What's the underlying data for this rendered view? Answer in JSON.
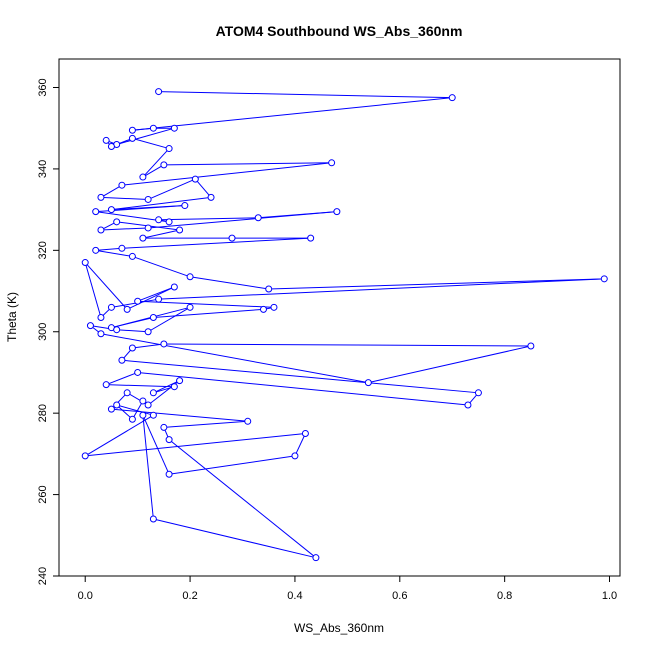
{
  "chart_data": {
    "type": "line",
    "title": "ATOM4 Southbound WS_Abs_360nm",
    "xlabel": "WS_Abs_360nm",
    "ylabel": "Theta (K)",
    "xlim": [
      -0.05,
      1.02
    ],
    "ylim": [
      240,
      367
    ],
    "x_ticks": [
      0.0,
      0.2,
      0.4,
      0.6,
      0.8,
      1.0
    ],
    "x_tick_labels": [
      "0.0",
      "0.2",
      "0.4",
      "0.6",
      "0.8",
      "1.0"
    ],
    "y_ticks": [
      240,
      260,
      280,
      300,
      320,
      340,
      360
    ],
    "y_tick_labels": [
      "240",
      "260",
      "280",
      "300",
      "320",
      "340",
      "360"
    ],
    "grid": false,
    "legend": "none",
    "series_color": "#0000ff",
    "marker": "open-circle",
    "x": [
      0.14,
      0.7,
      0.09,
      0.13,
      0.17,
      0.06,
      0.04,
      0.05,
      0.09,
      0.16,
      0.11,
      0.15,
      0.47,
      0.07,
      0.03,
      0.12,
      0.21,
      0.24,
      0.05,
      0.19,
      0.02,
      0.16,
      0.14,
      0.33,
      0.48,
      0.12,
      0.03,
      0.06,
      0.18,
      0.11,
      0.28,
      0.43,
      0.07,
      0.02,
      0.09,
      0.2,
      0.35,
      0.99,
      0.14,
      0.05,
      0.03,
      0.0,
      0.08,
      0.17,
      0.1,
      0.36,
      0.34,
      0.13,
      0.05,
      0.2,
      0.12,
      0.06,
      0.01,
      0.03,
      0.54,
      0.85,
      0.15,
      0.09,
      0.07,
      0.75,
      0.73,
      0.1,
      0.04,
      0.17,
      0.13,
      0.18,
      0.12,
      0.08,
      0.05,
      0.31,
      0.15,
      0.16,
      0.44,
      0.13,
      0.11,
      0.16,
      0.4,
      0.42,
      0.0,
      0.13,
      0.06,
      0.09,
      0.11
    ],
    "y": [
      359.0,
      357.5,
      349.5,
      350.0,
      350.0,
      346.0,
      347.0,
      345.5,
      347.5,
      345.0,
      338.0,
      341.0,
      341.5,
      336.0,
      333.0,
      332.5,
      337.5,
      333.0,
      330.0,
      331.0,
      329.5,
      327.0,
      327.5,
      328.0,
      329.5,
      325.5,
      325.0,
      327.0,
      325.0,
      323.0,
      323.0,
      323.0,
      320.5,
      320.0,
      318.5,
      313.5,
      310.5,
      313.0,
      308.0,
      306.0,
      303.5,
      317.0,
      305.5,
      311.0,
      307.5,
      306.0,
      305.5,
      303.5,
      301.0,
      306.0,
      300.0,
      300.5,
      301.5,
      299.5,
      287.5,
      296.5,
      297.0,
      296.0,
      293.0,
      285.0,
      282.0,
      290.0,
      287.0,
      286.5,
      285.0,
      288.0,
      282.0,
      285.0,
      281.0,
      278.0,
      276.5,
      273.5,
      244.5,
      254.0,
      279.5,
      265.0,
      269.5,
      275.0,
      269.5,
      279.5,
      282.0,
      278.5,
      283.0
    ]
  }
}
